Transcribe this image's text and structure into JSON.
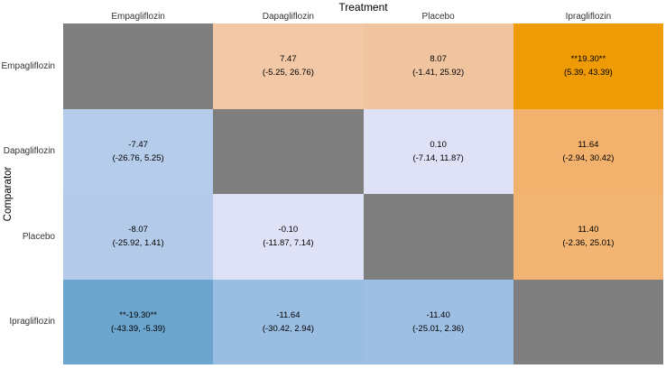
{
  "title": "Treatment",
  "ylabel": "Comparator",
  "columns": [
    "Empagliflozin",
    "Dapagliflozin",
    "Placebo",
    "Ipragliflozin"
  ],
  "rows": [
    "Empagliflozin",
    "Dapagliflozin",
    "Placebo",
    "Ipragliflozin"
  ],
  "diagonal_color": "#7F7F7F",
  "cells": [
    [
      {
        "value": "",
        "ci": "",
        "color": "#7F7F7F"
      },
      {
        "value": "7.47",
        "ci": "(-5.25, 26.76)",
        "color": "#F2C8A6"
      },
      {
        "value": "8.07",
        "ci": "(-1.41, 25.92)",
        "color": "#F1C4A0"
      },
      {
        "value": "**19.30**",
        "ci": "(5.39, 43.39)",
        "color": "#EF9B06"
      }
    ],
    [
      {
        "value": "-7.47",
        "ci": "(-26.76, 5.25)",
        "color": "#B5CCEA"
      },
      {
        "value": "",
        "ci": "",
        "color": "#7F7F7F"
      },
      {
        "value": "0.10",
        "ci": "(-7.14, 11.87)",
        "color": "#DFE2F6"
      },
      {
        "value": "11.64",
        "ci": "(-2.94, 30.42)",
        "color": "#F2B26E"
      }
    ],
    [
      {
        "value": "-8.07",
        "ci": "(-25.92, 1.41)",
        "color": "#B3CBE9"
      },
      {
        "value": "-0.10",
        "ci": "(-11.87, 7.14)",
        "color": "#DFE2F6"
      },
      {
        "value": "",
        "ci": "",
        "color": "#7F7F7F"
      },
      {
        "value": "11.40",
        "ci": "(-2.36, 25.01)",
        "color": "#F2B472"
      }
    ],
    [
      {
        "value": "**-19.30**",
        "ci": "(-43.39, -5.39)",
        "color": "#6CA5CE"
      },
      {
        "value": "-11.64",
        "ci": "(-30.42, 2.94)",
        "color": "#9ABDE2"
      },
      {
        "value": "-11.40",
        "ci": "(-25.01, 2.36)",
        "color": "#9DBFE3"
      },
      {
        "value": "",
        "ci": "",
        "color": "#7F7F7F"
      }
    ]
  ],
  "chart_data": {
    "type": "heatmap",
    "title": "Treatment",
    "xlabel": "Treatment",
    "ylabel": "Comparator",
    "x_categories": [
      "Empagliflozin",
      "Dapagliflozin",
      "Placebo",
      "Ipragliflozin"
    ],
    "y_categories": [
      "Empagliflozin",
      "Dapagliflozin",
      "Placebo",
      "Ipragliflozin"
    ],
    "estimates": [
      [
        null,
        7.47,
        8.07,
        19.3
      ],
      [
        -7.47,
        null,
        0.1,
        11.64
      ],
      [
        -8.07,
        -0.1,
        null,
        11.4
      ],
      [
        -19.3,
        -11.64,
        -11.4,
        null
      ]
    ],
    "ci_lower": [
      [
        null,
        -5.25,
        -1.41,
        5.39
      ],
      [
        -26.76,
        null,
        -7.14,
        -2.94
      ],
      [
        -25.92,
        -11.87,
        null,
        -2.36
      ],
      [
        -43.39,
        -30.42,
        -25.01,
        null
      ]
    ],
    "ci_upper": [
      [
        null,
        26.76,
        25.92,
        43.39
      ],
      [
        5.25,
        null,
        11.87,
        30.42
      ],
      [
        1.41,
        7.14,
        null,
        25.01
      ],
      [
        -5.39,
        2.94,
        2.36,
        null
      ]
    ],
    "significant": [
      [
        null,
        false,
        false,
        true
      ],
      [
        false,
        null,
        false,
        false
      ],
      [
        false,
        false,
        null,
        false
      ],
      [
        true,
        false,
        false,
        null
      ]
    ],
    "significance_marker": "**",
    "color_scale": {
      "positive_high": "#EF9B06",
      "positive_low": "#F2C8A6",
      "neutral": "#DFE2F6",
      "negative_low": "#B5CCEA",
      "negative_high": "#6CA5CE",
      "diagonal": "#7F7F7F"
    },
    "grid": false,
    "legend_position": "none"
  }
}
